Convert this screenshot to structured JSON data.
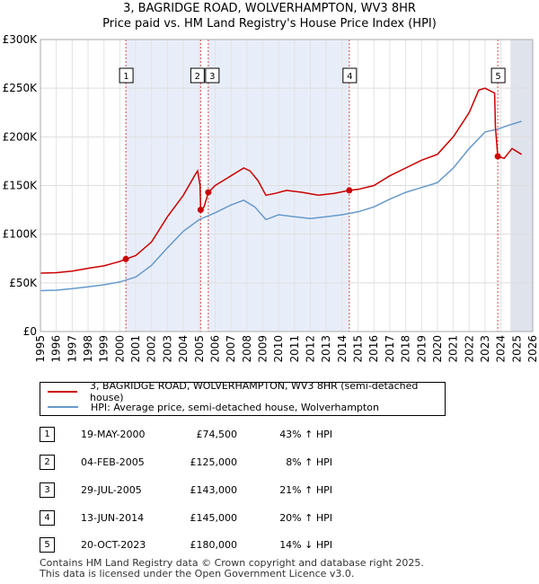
{
  "header": {
    "title": "3, BAGRIDGE ROAD, WOLVERHAMPTON, WV3 8HR",
    "subtitle": "Price paid vs. HM Land Registry's House Price Index (HPI)"
  },
  "chart_data": {
    "type": "line",
    "title": "3, BAGRIDGE ROAD, WOLVERHAMPTON, WV3 8HR",
    "subtitle": "Price paid vs. HM Land Registry's House Price Index (HPI)",
    "xlim": [
      1995,
      2026
    ],
    "ylim": [
      0,
      300000
    ],
    "y_ticks": [
      {
        "value": 0,
        "label": "£0"
      },
      {
        "value": 50000,
        "label": "£50K"
      },
      {
        "value": 100000,
        "label": "£100K"
      },
      {
        "value": 150000,
        "label": "£150K"
      },
      {
        "value": 200000,
        "label": "£200K"
      },
      {
        "value": 250000,
        "label": "£250K"
      },
      {
        "value": 300000,
        "label": "£300K"
      }
    ],
    "x_ticks": [
      "1995",
      "1996",
      "1997",
      "1998",
      "1999",
      "2000",
      "2001",
      "2002",
      "2003",
      "2004",
      "2005",
      "2006",
      "2007",
      "2008",
      "2009",
      "2010",
      "2011",
      "2012",
      "2013",
      "2014",
      "2015",
      "2016",
      "2017",
      "2018",
      "2019",
      "2020",
      "2021",
      "2022",
      "2023",
      "2024",
      "2025",
      "2026"
    ],
    "series": [
      {
        "name": "3, BAGRIDGE ROAD, WOLVERHAMPTON, WV3 8HR (semi-detached house)",
        "color": "#cc0000",
        "points": [
          [
            1995.0,
            60000
          ],
          [
            1996.0,
            60500
          ],
          [
            1997.0,
            62000
          ],
          [
            1998.0,
            65000
          ],
          [
            1999.0,
            67500
          ],
          [
            2000.0,
            72000
          ],
          [
            2000.38,
            74500
          ],
          [
            2001.0,
            78000
          ],
          [
            2002.0,
            92000
          ],
          [
            2003.0,
            118000
          ],
          [
            2004.0,
            140000
          ],
          [
            2004.7,
            160000
          ],
          [
            2004.9,
            165000
          ],
          [
            2005.05,
            150000
          ],
          [
            2005.09,
            125000
          ],
          [
            2005.3,
            128000
          ],
          [
            2005.57,
            143000
          ],
          [
            2006.0,
            150000
          ],
          [
            2007.0,
            160000
          ],
          [
            2007.8,
            168000
          ],
          [
            2008.2,
            165000
          ],
          [
            2008.7,
            155000
          ],
          [
            2009.2,
            140000
          ],
          [
            2009.8,
            142000
          ],
          [
            2010.5,
            145000
          ],
          [
            2011.5,
            143000
          ],
          [
            2012.5,
            140000
          ],
          [
            2013.5,
            142000
          ],
          [
            2014.45,
            145000
          ],
          [
            2015.0,
            146000
          ],
          [
            2016.0,
            150000
          ],
          [
            2017.0,
            160000
          ],
          [
            2018.0,
            168000
          ],
          [
            2019.0,
            176000
          ],
          [
            2020.0,
            182000
          ],
          [
            2021.0,
            200000
          ],
          [
            2022.0,
            225000
          ],
          [
            2022.6,
            248000
          ],
          [
            2023.0,
            250000
          ],
          [
            2023.6,
            245000
          ],
          [
            2023.65,
            210000
          ],
          [
            2023.8,
            180000
          ],
          [
            2024.2,
            178000
          ],
          [
            2024.7,
            188000
          ],
          [
            2025.3,
            182000
          ]
        ]
      },
      {
        "name": "HPI: Average price, semi-detached house, Wolverhampton",
        "color": "#6699cc",
        "points": [
          [
            1995.0,
            42000
          ],
          [
            1996.0,
            42500
          ],
          [
            1997.0,
            44000
          ],
          [
            1998.0,
            46000
          ],
          [
            1999.0,
            48000
          ],
          [
            2000.0,
            51000
          ],
          [
            2001.0,
            56000
          ],
          [
            2002.0,
            68000
          ],
          [
            2003.0,
            86000
          ],
          [
            2004.0,
            103000
          ],
          [
            2005.0,
            115000
          ],
          [
            2006.0,
            122000
          ],
          [
            2007.0,
            130000
          ],
          [
            2007.8,
            135000
          ],
          [
            2008.5,
            128000
          ],
          [
            2009.2,
            115000
          ],
          [
            2010.0,
            120000
          ],
          [
            2011.0,
            118000
          ],
          [
            2012.0,
            116000
          ],
          [
            2013.0,
            118000
          ],
          [
            2014.0,
            120000
          ],
          [
            2015.0,
            123000
          ],
          [
            2016.0,
            128000
          ],
          [
            2017.0,
            136000
          ],
          [
            2018.0,
            143000
          ],
          [
            2019.0,
            148000
          ],
          [
            2020.0,
            153000
          ],
          [
            2021.0,
            168000
          ],
          [
            2022.0,
            188000
          ],
          [
            2023.0,
            205000
          ],
          [
            2023.8,
            208000
          ],
          [
            2024.5,
            212000
          ],
          [
            2025.3,
            216000
          ]
        ]
      }
    ],
    "sale_markers": [
      {
        "label": "1",
        "date": 2000.38,
        "value": 74500
      },
      {
        "label": "2",
        "date": 2005.09,
        "value": 125000
      },
      {
        "label": "3",
        "date": 2005.57,
        "value": 143000
      },
      {
        "label": "4",
        "date": 2014.45,
        "value": 145000
      },
      {
        "label": "5",
        "date": 2023.8,
        "value": 180000
      }
    ],
    "shaded_periods": [
      [
        2000.38,
        2005.09
      ],
      [
        2005.57,
        2014.45
      ],
      [
        2024.6,
        2026
      ]
    ]
  },
  "legend": {
    "property": "3, BAGRIDGE ROAD, WOLVERHAMPTON, WV3 8HR (semi-detached house)",
    "hpi": "HPI: Average price, semi-detached house, Wolverhampton",
    "property_color": "#cc0000",
    "hpi_color": "#6699cc"
  },
  "sales": [
    {
      "num": "1",
      "date": "19-MAY-2000",
      "price": "£74,500",
      "hpi": "43% ↑ HPI"
    },
    {
      "num": "2",
      "date": "04-FEB-2005",
      "price": "£125,000",
      "hpi": "8% ↑ HPI"
    },
    {
      "num": "3",
      "date": "29-JUL-2005",
      "price": "£143,000",
      "hpi": "21% ↑ HPI"
    },
    {
      "num": "4",
      "date": "13-JUN-2014",
      "price": "£145,000",
      "hpi": "20% ↑ HPI"
    },
    {
      "num": "5",
      "date": "20-OCT-2023",
      "price": "£180,000",
      "hpi": "14% ↓ HPI"
    }
  ],
  "footer": {
    "line1": "Contains HM Land Registry data © Crown copyright and database right 2025.",
    "line2": "This data is licensed under the Open Government Licence v3.0."
  }
}
